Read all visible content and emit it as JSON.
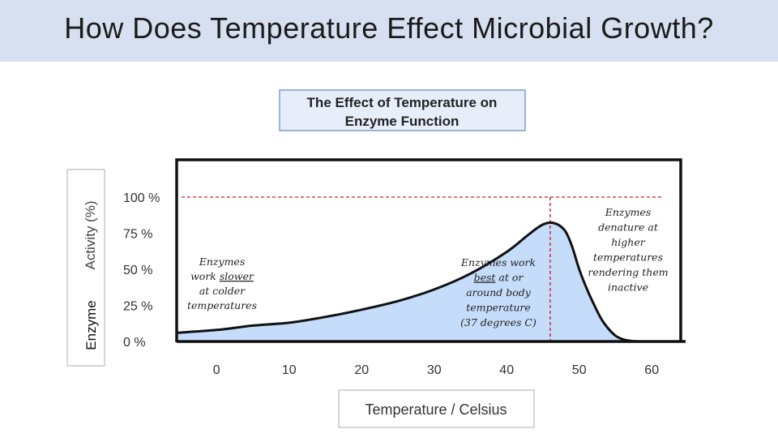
{
  "slide": {
    "title": "How Does Temperature Effect Microbial Growth?"
  },
  "chart_data": {
    "type": "area",
    "title_lines": [
      "The Effect of Temperature on",
      "Enzyme Function"
    ],
    "ylabel_light": "Activity  (%)",
    "ylabel_bold": "Enzyme",
    "xlabel": "Temperature / Celsius",
    "x_ticks": [
      0,
      10,
      20,
      30,
      40,
      50,
      60
    ],
    "y_ticks": [
      {
        "value": 0,
        "label": "0 %"
      },
      {
        "value": 25,
        "label": "25 %"
      },
      {
        "value": 50,
        "label": "50 %"
      },
      {
        "value": 75,
        "label": "75 %"
      },
      {
        "value": 100,
        "label": "100 %"
      }
    ],
    "xlim": [
      -5.5,
      64
    ],
    "ylim": [
      0,
      100
    ],
    "series": [
      {
        "x": [
          -5.5,
          0,
          5,
          10,
          15,
          20,
          25,
          30,
          35,
          40,
          43,
          45,
          46.5,
          48,
          49,
          50,
          51,
          52,
          53,
          54,
          55,
          56,
          57,
          58,
          60,
          64
        ],
        "values": [
          6,
          8,
          11,
          13,
          17,
          22,
          28,
          36,
          47,
          62,
          74,
          81,
          82,
          77,
          66,
          50,
          37,
          26,
          16,
          9,
          4,
          1.5,
          0.5,
          0,
          0,
          0
        ]
      }
    ],
    "fill_color": "#c6dcfb",
    "line_color": "#111111",
    "ref_line_color": "#cc2222",
    "peak": {
      "x": 46,
      "y": 100
    },
    "annotations": [
      {
        "id": "cold",
        "lines": [
          "Enzymes",
          "work slower",
          "at colder",
          "temperatures"
        ]
      },
      {
        "id": "best",
        "lines": [
          "Enzymes work",
          "best at or",
          "around body",
          "temperature",
          "(37 degrees C)"
        ]
      },
      {
        "id": "hot",
        "lines": [
          "Enzymes",
          "denature at",
          "higher",
          "temperatures",
          "rendering them",
          "inactive"
        ]
      }
    ]
  }
}
